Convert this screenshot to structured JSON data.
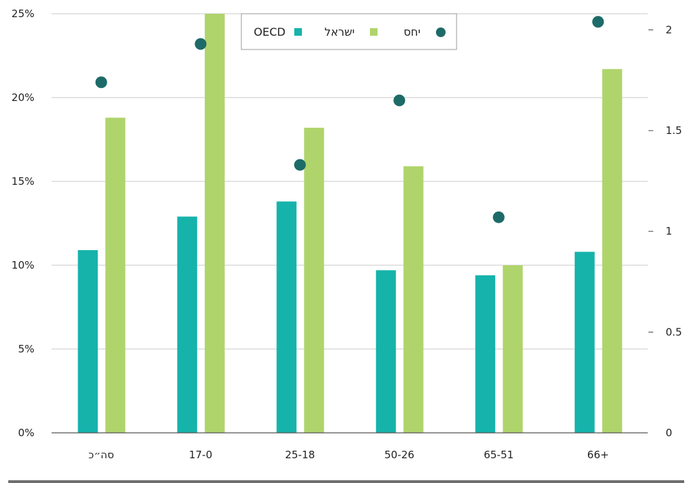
{
  "chart_data": {
    "type": "bar",
    "categories": [
      "סה״כ",
      "17-0",
      "25-18",
      "50-26",
      "65-51",
      "66+"
    ],
    "series": [
      {
        "name": "OECD",
        "kind": "bar",
        "axis": "left",
        "color": "#16b3ab",
        "values": [
          10.9,
          12.9,
          13.8,
          9.7,
          9.4,
          10.8
        ]
      },
      {
        "name": "ישראל",
        "kind": "bar",
        "axis": "left",
        "color": "#b0d46c",
        "values": [
          18.8,
          25.3,
          18.2,
          15.9,
          10.0,
          21.7
        ]
      },
      {
        "name": "יחס",
        "kind": "scatter",
        "axis": "right",
        "color": "#1d6b68",
        "values": [
          1.74,
          1.93,
          1.33,
          1.65,
          1.07,
          2.04
        ]
      }
    ],
    "yLeft": {
      "ticks": [
        "0%",
        "5%",
        "10%",
        "15%",
        "20%",
        "25%"
      ],
      "ylim": [
        0,
        25
      ]
    },
    "yRight": {
      "ticks": [
        "0",
        "0.5",
        "1",
        "1.5",
        "2"
      ],
      "ylim": [
        0,
        2.08
      ]
    },
    "legend": {
      "placement": "top-center"
    },
    "grid": true
  }
}
